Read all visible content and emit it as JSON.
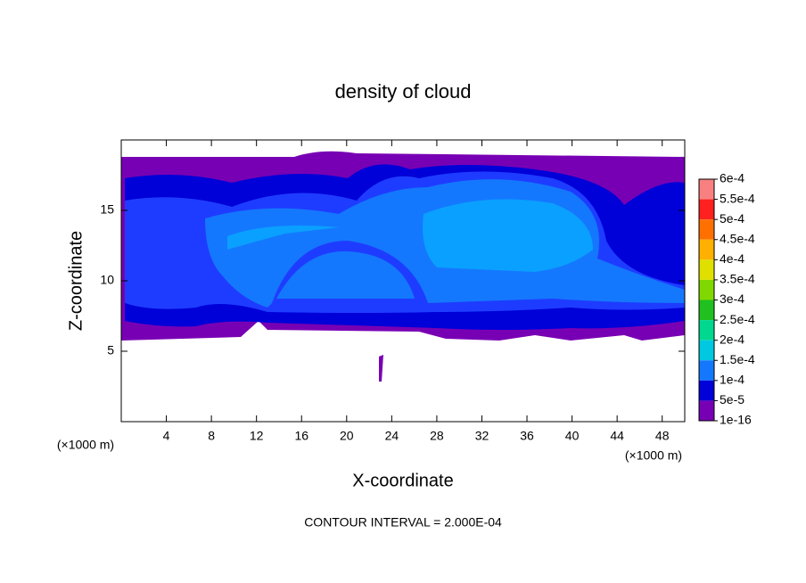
{
  "chart_data": {
    "type": "contour",
    "title": "density of cloud",
    "xlabel": "X-coordinate",
    "ylabel": "Z-coordinate",
    "xunit": "(×1000 m)",
    "yunit": "(×1000 m)",
    "footer": "CONTOUR INTERVAL = 2.000E-04",
    "xlim": [
      0,
      50
    ],
    "ylim": [
      0,
      20
    ],
    "xticks": [
      4,
      8,
      12,
      16,
      20,
      24,
      28,
      32,
      36,
      40,
      44,
      48
    ],
    "yticks": [
      5,
      10,
      15
    ],
    "colorbar": {
      "ticks": [
        {
          "value": 0.0006,
          "label": "6e-4"
        },
        {
          "value": 0.00055,
          "label": "5.5e-4"
        },
        {
          "value": 0.0005,
          "label": "5e-4"
        },
        {
          "value": 0.00045,
          "label": "4.5e-4"
        },
        {
          "value": 0.0004,
          "label": "4e-4"
        },
        {
          "value": 0.00035,
          "label": "3.5e-4"
        },
        {
          "value": 0.0003,
          "label": "3e-4"
        },
        {
          "value": 0.00025,
          "label": "2.5e-4"
        },
        {
          "value": 0.0002,
          "label": "2e-4"
        },
        {
          "value": 0.00015,
          "label": "1.5e-4"
        },
        {
          "value": 0.0001,
          "label": "1e-4"
        },
        {
          "value": 5e-05,
          "label": "5e-5"
        },
        {
          "value": 1e-16,
          "label": "1e-16"
        }
      ],
      "colors": [
        "#f88080",
        "#ff2020",
        "#ff7000",
        "#ffb000",
        "#e0e000",
        "#80d800",
        "#20c020",
        "#00d890",
        "#00c8e0",
        "#1478ff",
        "#0000d8",
        "#7800b4"
      ]
    }
  }
}
